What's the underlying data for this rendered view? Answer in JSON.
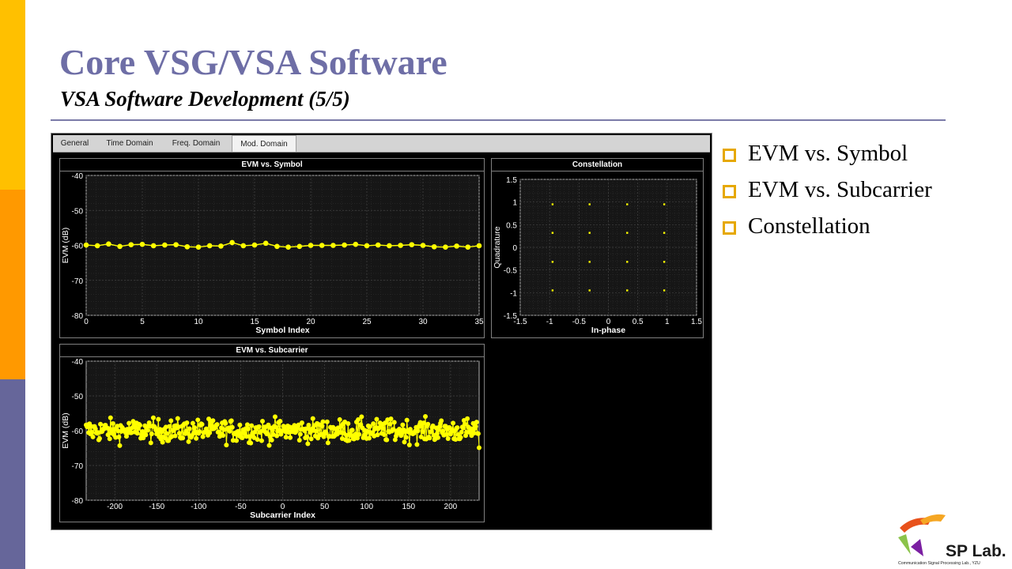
{
  "slide": {
    "title": "Core VSG/VSA Software",
    "subtitle": "VSA Software Development (5/5)"
  },
  "app": {
    "tabs": [
      {
        "label": "General",
        "active": false
      },
      {
        "label": "Time Domain",
        "active": false
      },
      {
        "label": "Freq. Domain",
        "active": false
      },
      {
        "label": "Mod. Domain",
        "active": true
      }
    ]
  },
  "chart_data": [
    {
      "id": "evm-symbol",
      "type": "line",
      "title": "EVM vs. Symbol",
      "xlabel": "Symbol Index",
      "ylabel": "EVM (dB)",
      "xlim": [
        0,
        35
      ],
      "ylim": [
        -80,
        -40
      ],
      "xticks": [
        0,
        5,
        10,
        15,
        20,
        25,
        30,
        35
      ],
      "yticks": [
        -80,
        -70,
        -60,
        -50,
        -40
      ],
      "grid": true,
      "color": "#FFFF00",
      "x": [
        0,
        1,
        2,
        3,
        4,
        5,
        6,
        7,
        8,
        9,
        10,
        11,
        12,
        13,
        14,
        15,
        16,
        17,
        18,
        19,
        20,
        21,
        22,
        23,
        24,
        25,
        26,
        27,
        28,
        29,
        30,
        31,
        32,
        33,
        34,
        35
      ],
      "values": [
        -59.9,
        -60.1,
        -59.6,
        -60.3,
        -59.8,
        -59.7,
        -60.1,
        -59.9,
        -59.8,
        -60.4,
        -60.5,
        -60.1,
        -60.2,
        -59.2,
        -60.1,
        -59.9,
        -59.4,
        -60.3,
        -60.5,
        -60.3,
        -60.0,
        -60.0,
        -60.0,
        -59.9,
        -59.7,
        -60.1,
        -59.9,
        -60.1,
        -60.0,
        -59.8,
        -60.0,
        -60.4,
        -60.5,
        -60.2,
        -60.5,
        -60.1
      ]
    },
    {
      "id": "constellation",
      "type": "scatter",
      "title": "Constellation",
      "xlabel": "In-phase",
      "ylabel": "Quadrature",
      "xlim": [
        -1.5,
        1.5
      ],
      "ylim": [
        -1.5,
        1.5
      ],
      "xticks": [
        -1.5,
        -1,
        -0.5,
        0,
        0.5,
        1,
        1.5
      ],
      "yticks": [
        -1.5,
        -1,
        -0.5,
        0,
        0.5,
        1,
        1.5
      ],
      "grid": true,
      "color": "#FFFF00",
      "i_levels": [
        -0.95,
        -0.32,
        0.32,
        0.95
      ],
      "q_levels": [
        -0.95,
        -0.32,
        0.32,
        0.95
      ]
    },
    {
      "id": "evm-subcarrier",
      "type": "scatter",
      "title": "EVM vs. Subcarrier",
      "xlabel": "Subcarrier Index",
      "ylabel": "EVM (dB)",
      "xlim": [
        -234,
        234
      ],
      "ylim": [
        -80,
        -40
      ],
      "xticks": [
        -200,
        -150,
        -100,
        -50,
        0,
        50,
        100,
        150,
        200
      ],
      "yticks": [
        -80,
        -70,
        -60,
        -50,
        -40
      ],
      "grid": true,
      "color": "#FFFF00",
      "x_range": [
        -234,
        234
      ],
      "mean": -60,
      "spread": 2.2,
      "min": -64.9,
      "max": -55.9
    }
  ],
  "bullets": [
    {
      "label": "EVM vs. Symbol"
    },
    {
      "label": "EVM vs. Subcarrier"
    },
    {
      "label": "Constellation"
    }
  ],
  "logo": {
    "text": "SP Lab.",
    "tagline": "Communication Signal Processing Lab., YZU"
  },
  "colors": {
    "accent_yellow": "#FFC000",
    "accent_orange": "#FF9900",
    "accent_purple": "#66669A",
    "title": "#6E6EA6",
    "trace": "#FFFF00",
    "bullet": "#E6A800"
  }
}
